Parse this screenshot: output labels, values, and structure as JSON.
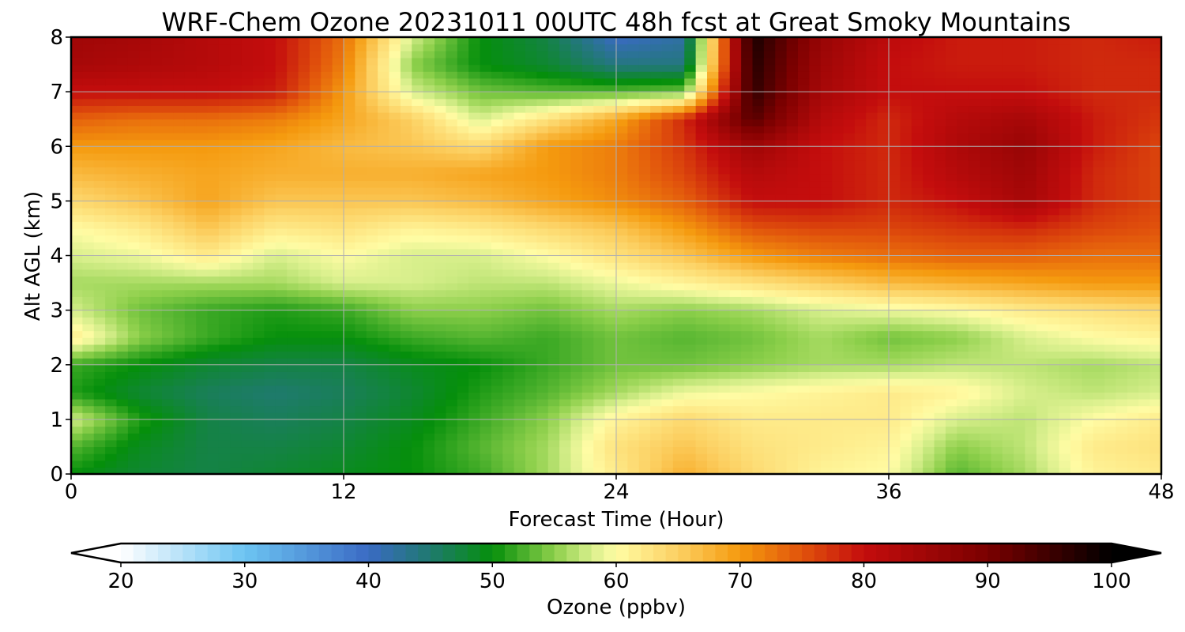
{
  "chart_data": {
    "type": "heatmap",
    "title": "WRF-Chem Ozone  20231011 00UTC 48h fcst at Great Smoky Mountains",
    "xlabel": "Forecast Time (Hour)",
    "ylabel": "Alt AGL (km)",
    "xlim": [
      0,
      48
    ],
    "ylim": [
      0,
      8
    ],
    "x_ticks": [
      "0",
      "12",
      "24",
      "36",
      "48"
    ],
    "y_ticks": [
      "0",
      "1",
      "2",
      "3",
      "4",
      "5",
      "6",
      "7",
      "8"
    ],
    "grid": true,
    "colorbar": {
      "label": "Ozone  (ppbv)",
      "range": [
        20,
        100
      ],
      "ticks": [
        "20",
        "30",
        "40",
        "50",
        "60",
        "70",
        "80",
        "90",
        "100"
      ],
      "extend": "both",
      "orientation": "horizontal",
      "stops": [
        {
          "value": 20,
          "color": "#ffffff"
        },
        {
          "value": 30,
          "color": "#6cc4f2"
        },
        {
          "value": 40,
          "color": "#3a6ac4"
        },
        {
          "value": 45,
          "color": "#1f7a6e"
        },
        {
          "value": 50,
          "color": "#058f0b"
        },
        {
          "value": 55,
          "color": "#8ccf4a"
        },
        {
          "value": 58,
          "color": "#d8ef8c"
        },
        {
          "value": 60,
          "color": "#fffca4"
        },
        {
          "value": 65,
          "color": "#fcd062"
        },
        {
          "value": 70,
          "color": "#f59a0e"
        },
        {
          "value": 75,
          "color": "#e1530c"
        },
        {
          "value": 80,
          "color": "#c40d0d"
        },
        {
          "value": 90,
          "color": "#7a0000"
        },
        {
          "value": 100,
          "color": "#000000"
        }
      ]
    },
    "x": [
      0,
      3,
      6,
      9,
      12,
      15,
      18,
      21,
      24,
      27,
      30,
      33,
      36,
      39,
      42,
      45,
      48
    ],
    "y": [
      0,
      0.5,
      1,
      1.5,
      2,
      2.5,
      3,
      3.5,
      4,
      4.5,
      5,
      5.5,
      6,
      6.5,
      7,
      7.5,
      8
    ],
    "z": [
      [
        50,
        48,
        47,
        48,
        49,
        50,
        52,
        56,
        62,
        68,
        64,
        61,
        60,
        53,
        56,
        61,
        62
      ],
      [
        53,
        49,
        47,
        47,
        48,
        50,
        53,
        56,
        63,
        66,
        63,
        62,
        61,
        55,
        57,
        62,
        63
      ],
      [
        58,
        51,
        47,
        46,
        47,
        49,
        52,
        55,
        61,
        64,
        62,
        62,
        62,
        58,
        57,
        60,
        62
      ],
      [
        51,
        48,
        46,
        45,
        46,
        48,
        51,
        53,
        56,
        59,
        60,
        61,
        62,
        61,
        58,
        57,
        58
      ],
      [
        52,
        50,
        48,
        47,
        47,
        49,
        50,
        52,
        54,
        54,
        55,
        56,
        56,
        57,
        57,
        56,
        57
      ],
      [
        62,
        55,
        52,
        50,
        50,
        52,
        53,
        52,
        54,
        53,
        54,
        56,
        54,
        55,
        58,
        60,
        61
      ],
      [
        58,
        54,
        52,
        51,
        52,
        55,
        55,
        54,
        56,
        55,
        56,
        58,
        59,
        60,
        62,
        63,
        64
      ],
      [
        56,
        56,
        56,
        56,
        58,
        58,
        57,
        57,
        59,
        61,
        63,
        65,
        67,
        68,
        69,
        70,
        70
      ],
      [
        58,
        59,
        62,
        58,
        60,
        58,
        58,
        60,
        63,
        66,
        70,
        72,
        73,
        74,
        74,
        73,
        73
      ],
      [
        60,
        62,
        66,
        62,
        63,
        61,
        62,
        64,
        66,
        70,
        75,
        76,
        76,
        77,
        78,
        76,
        75
      ],
      [
        64,
        66,
        69,
        66,
        66,
        66,
        67,
        69,
        71,
        74,
        80,
        80,
        78,
        80,
        84,
        78,
        76
      ],
      [
        67,
        68,
        69,
        68,
        68,
        68,
        69,
        70,
        72,
        76,
        82,
        80,
        78,
        82,
        85,
        78,
        76
      ],
      [
        70,
        70,
        70,
        69,
        67,
        66,
        64,
        70,
        72,
        77,
        85,
        80,
        78,
        83,
        86,
        79,
        76
      ],
      [
        74,
        73,
        73,
        72,
        69,
        65,
        58,
        63,
        69,
        78,
        93,
        82,
        78,
        82,
        84,
        79,
        77
      ],
      [
        80,
        80,
        80,
        79,
        70,
        58,
        54,
        53,
        53,
        54,
        96,
        84,
        80,
        80,
        80,
        78,
        78
      ],
      [
        84,
        83,
        82,
        80,
        72,
        55,
        50,
        48,
        44,
        44,
        97,
        85,
        80,
        79,
        79,
        78,
        78
      ],
      [
        85,
        84,
        82,
        80,
        73,
        58,
        50,
        47,
        40,
        42,
        98,
        86,
        81,
        79,
        79,
        78,
        79
      ]
    ]
  }
}
